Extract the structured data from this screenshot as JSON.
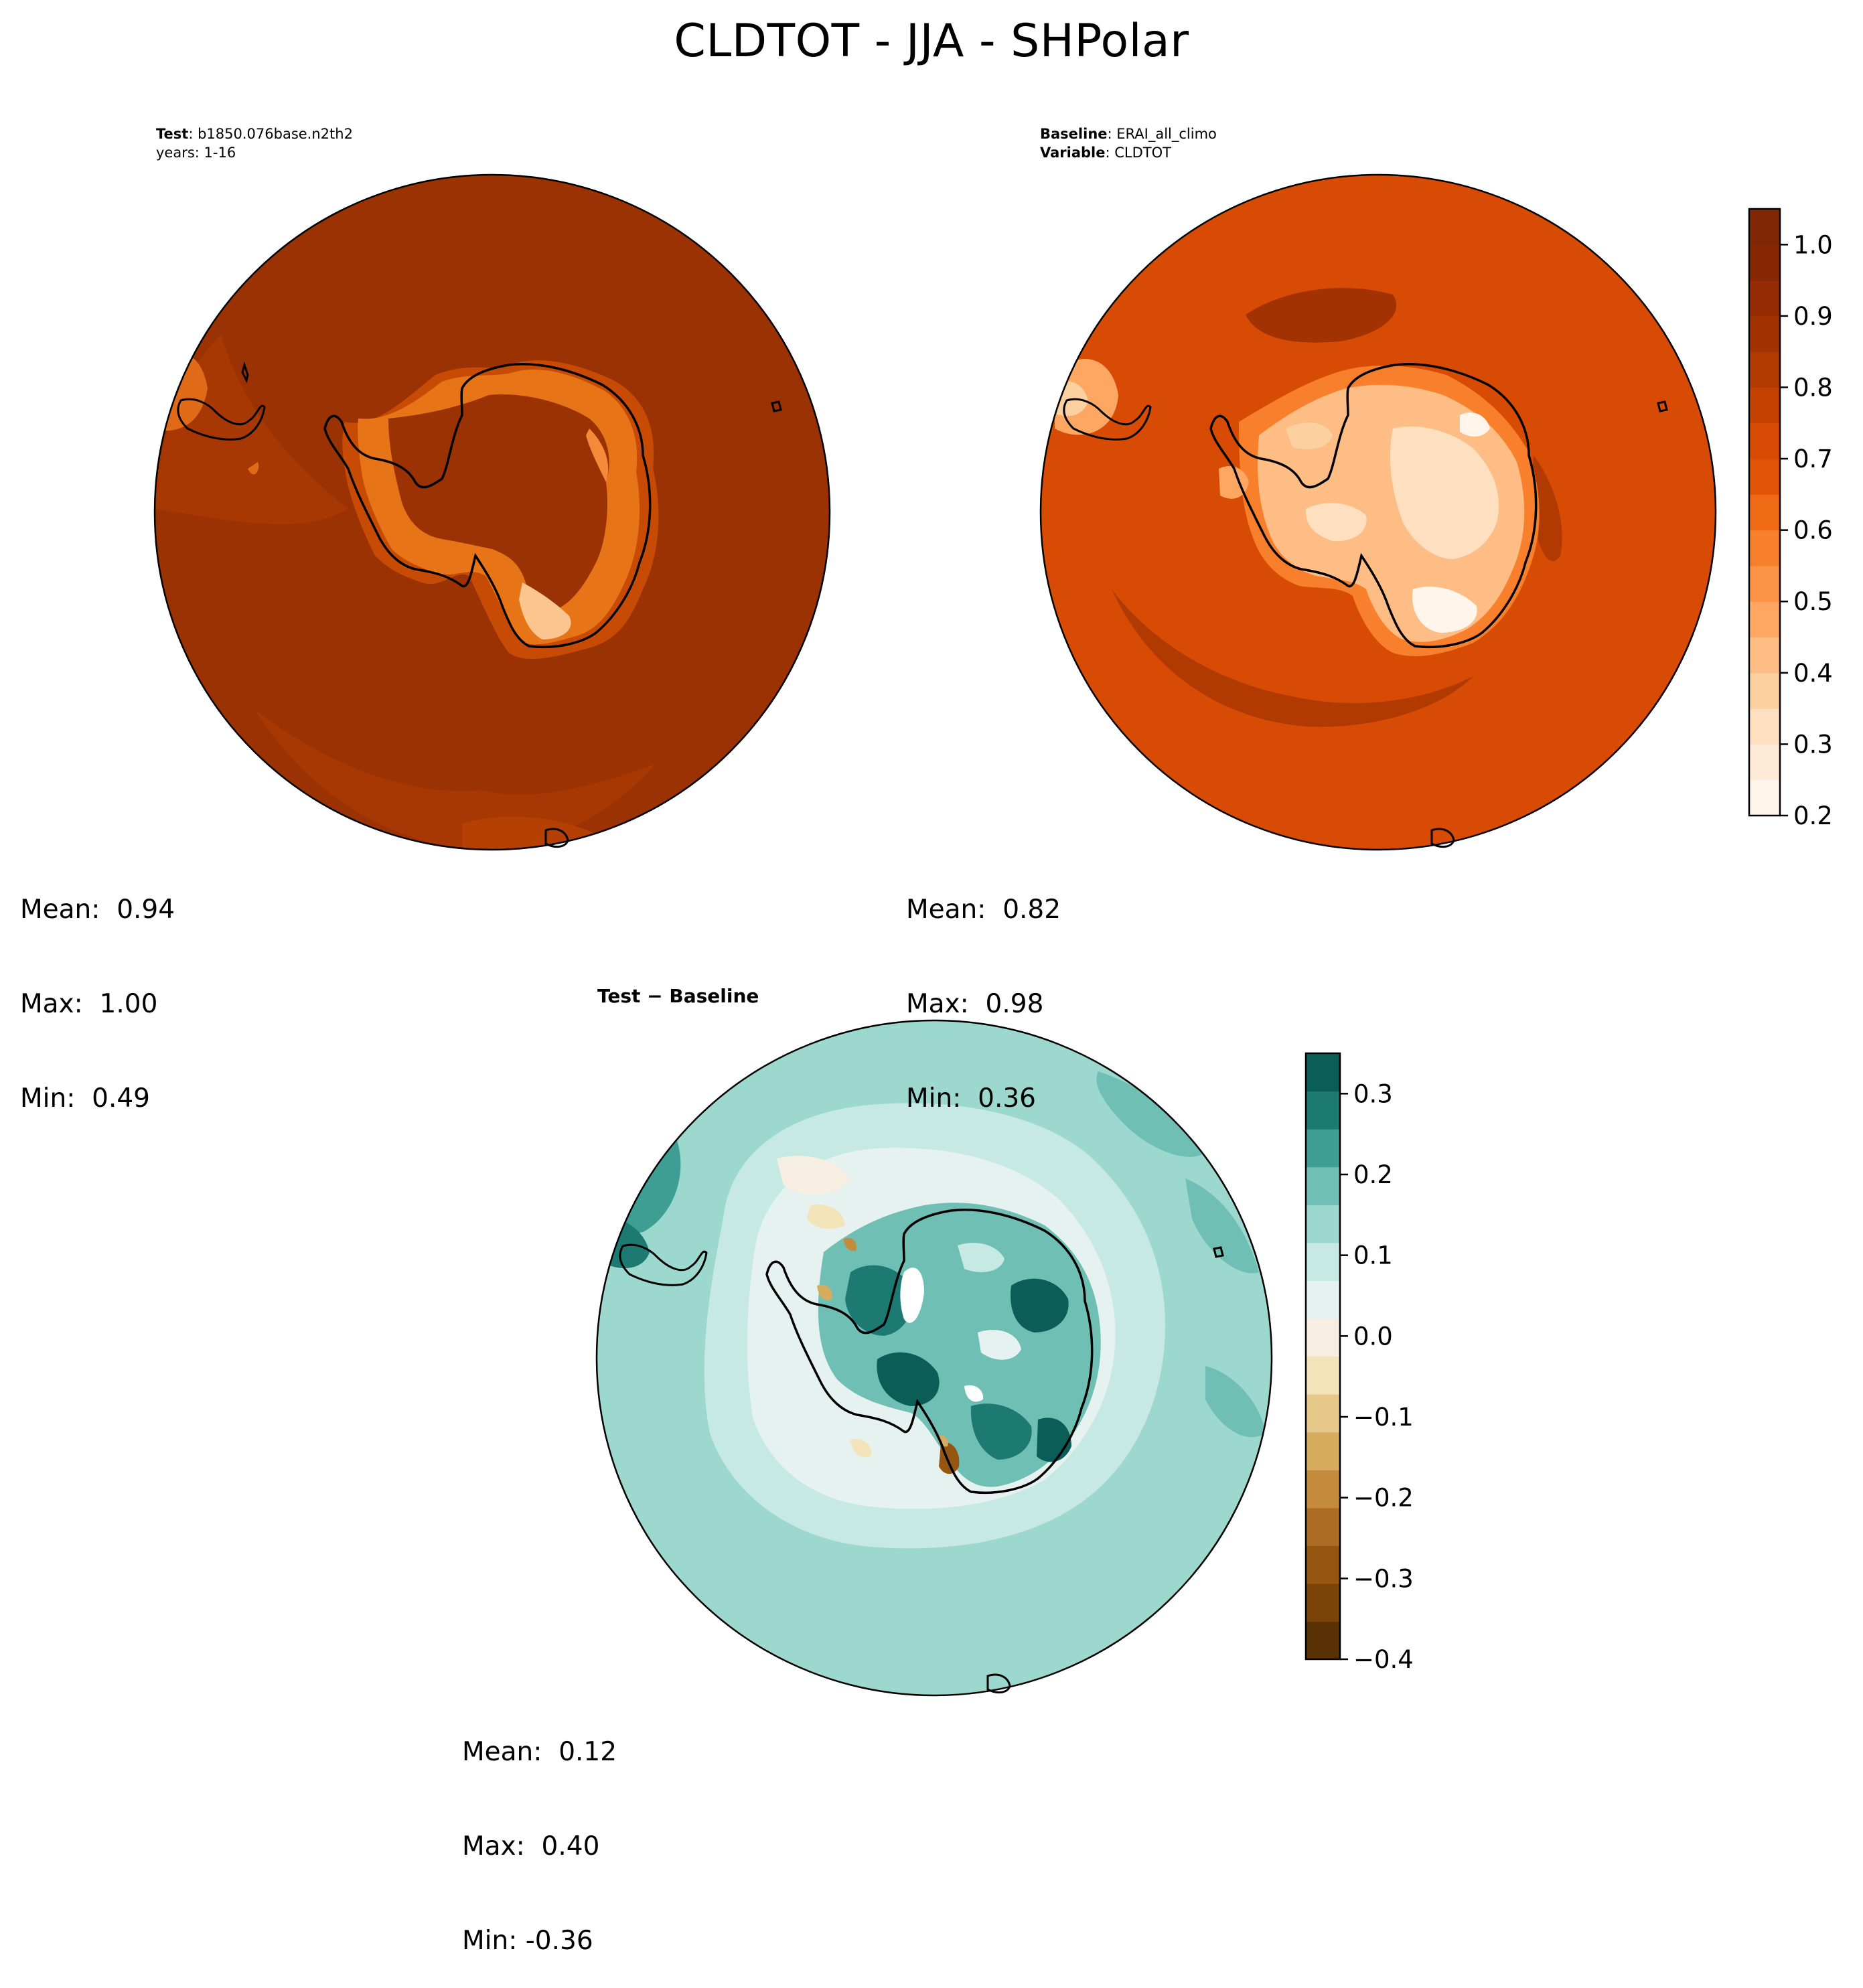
{
  "figure": {
    "title": "CLDTOT - JJA - SHPolar"
  },
  "panels": {
    "test": {
      "label_bold": "Test",
      "label_sep": ": ",
      "case": "b1850.076base.n2th2",
      "years": "years: 1-16",
      "stats": {
        "mean": "Mean:  0.94",
        "max": "Max:  1.00",
        "min": "Min:  0.49"
      }
    },
    "baseline": {
      "label_bold": "Baseline",
      "label_sep": ": ",
      "case": "ERAI_all_climo",
      "variable_bold": "Variable",
      "variable": "CLDTOT",
      "stats": {
        "mean": "Mean:  0.82",
        "max": "Max:  0.98",
        "min": "Min:  0.36"
      }
    },
    "difference": {
      "title": "Test − Baseline",
      "stats": {
        "mean": "Mean:  0.12",
        "max": "Max:  0.40",
        "min": "Min: -0.36"
      }
    }
  },
  "chart_data": [
    {
      "type": "heatmap",
      "title": "Test: b1850.076base.n2th2",
      "projection": "south polar stereographic",
      "field": "CLDTOT",
      "colormap": "Oranges",
      "mean": 0.94,
      "max": 1.0,
      "min": 0.49
    },
    {
      "type": "heatmap",
      "title": "Baseline: ERAI_all_climo",
      "projection": "south polar stereographic",
      "field": "CLDTOT",
      "colormap": "Oranges",
      "mean": 0.82,
      "max": 0.98,
      "min": 0.36,
      "colorbar": {
        "range": [
          0.2,
          1.05
        ],
        "ticks": [
          0.2,
          0.3,
          0.4,
          0.5,
          0.6,
          0.7,
          0.8,
          0.9,
          1.0
        ],
        "tick_labels": [
          "0.2",
          "0.3",
          "0.4",
          "0.5",
          "0.6",
          "0.7",
          "0.8",
          "0.9",
          "1.0"
        ],
        "level_colors": [
          "#fff5eb",
          "#feead6",
          "#fee0c1",
          "#fdd0a2",
          "#fdbd84",
          "#fda762",
          "#fd9344",
          "#f87f2c",
          "#ef6a15",
          "#e25508",
          "#d84b04",
          "#c54102",
          "#b13a03",
          "#a33203",
          "#962c03",
          "#872703",
          "#7f2704"
        ]
      }
    },
    {
      "type": "heatmap",
      "title": "Test − Baseline",
      "projection": "south polar stereographic",
      "field": "CLDTOT difference",
      "colormap": "BrBG",
      "mean": 0.12,
      "max": 0.4,
      "min": -0.36,
      "colorbar": {
        "range": [
          -0.4,
          0.35
        ],
        "ticks": [
          -0.4,
          -0.3,
          -0.2,
          -0.1,
          0.0,
          0.1,
          0.2,
          0.3
        ],
        "tick_labels": [
          "−0.4",
          "−0.3",
          "−0.2",
          "−0.1",
          "0.0",
          "0.1",
          "0.2",
          "0.3"
        ],
        "level_colors": [
          "#5a3005",
          "#7a4409",
          "#945611",
          "#ad6d24",
          "#c48b3c",
          "#d7ac5e",
          "#e6c98a",
          "#f2e3b8",
          "#f6efe1",
          "#e6f2ef",
          "#c7e9e4",
          "#9dd8ce",
          "#6fbfb4",
          "#3f9e94",
          "#1c7a73",
          "#0a5e57"
        ]
      }
    }
  ]
}
